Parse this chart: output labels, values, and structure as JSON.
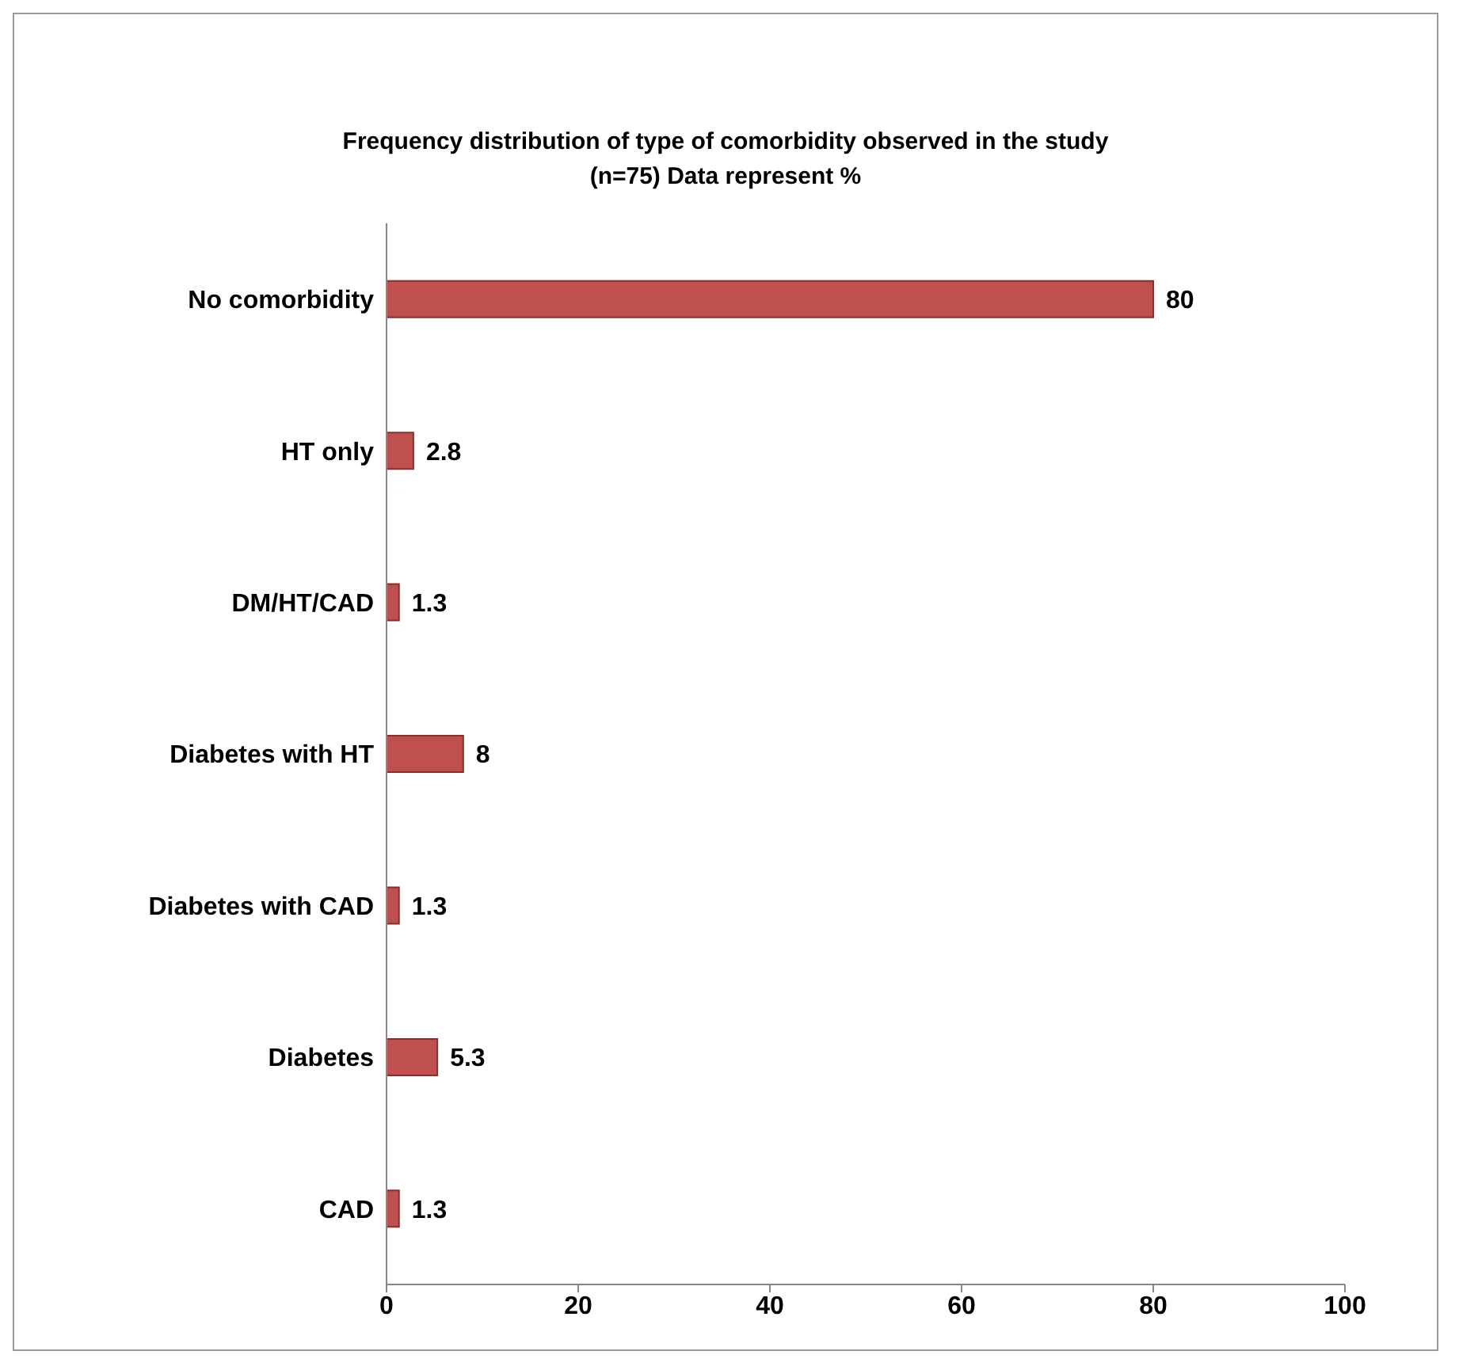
{
  "chart_data": {
    "type": "bar",
    "orientation": "horizontal",
    "title": "Frequency distribution of type of comorbidity observed in the study",
    "subtitle": "(n=75) Data represent %",
    "categories": [
      "No comorbidity",
      "HT only",
      "DM/HT/CAD",
      "Diabetes with HT",
      "Diabetes with CAD",
      "Diabetes",
      "CAD"
    ],
    "values": [
      80,
      2.8,
      1.3,
      8,
      1.3,
      5.3,
      1.3
    ],
    "color": "#c0504d",
    "xlim": [
      0,
      100
    ],
    "xticks": [
      0,
      20,
      40,
      60,
      80,
      100
    ],
    "data_labels": true
  }
}
